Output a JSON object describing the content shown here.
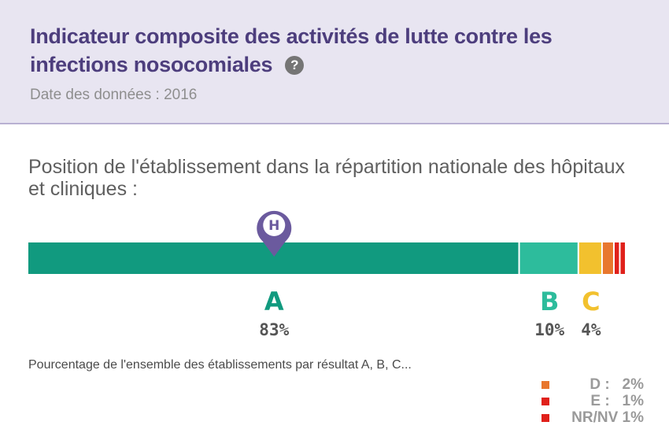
{
  "header": {
    "title": "Indicateur composite des activités de lutte contre les infections nosocomiales",
    "help_icon": "question-circle-icon",
    "date": "Date des données : 2016"
  },
  "subtitle": "Position de l'établissement dans la répartition nationale des hôpitaux et cliniques :",
  "caption": "Pourcentage de l'ensemble des établissements par résultat A, B, C...",
  "chart_data": {
    "type": "bar",
    "orientation": "horizontal-stacked",
    "title": "Position de l'établissement dans la répartition nationale des hôpitaux et cliniques :",
    "categories": [
      "A",
      "B",
      "C",
      "D",
      "E",
      "NR/NV"
    ],
    "values": [
      83,
      10,
      4,
      2,
      1,
      1
    ],
    "value_labels": [
      "83%",
      "10%",
      "4%",
      "2%",
      "1%",
      "1%"
    ],
    "colors": [
      "#119a7f",
      "#2dbc9c",
      "#f2c12e",
      "#e8772e",
      "#e0211b",
      "#e0211b"
    ],
    "marker": {
      "category": "A",
      "label": "H",
      "icon": "hospital-pin-icon",
      "color": "#6b5a9e"
    },
    "legend": [
      {
        "label": "D :",
        "value": "2%",
        "color": "#e8772e"
      },
      {
        "label": "E :",
        "value": "1%",
        "color": "#e0211b"
      },
      {
        "label": "NR/NV",
        "value": "1%",
        "color": "#e0211b"
      }
    ]
  }
}
